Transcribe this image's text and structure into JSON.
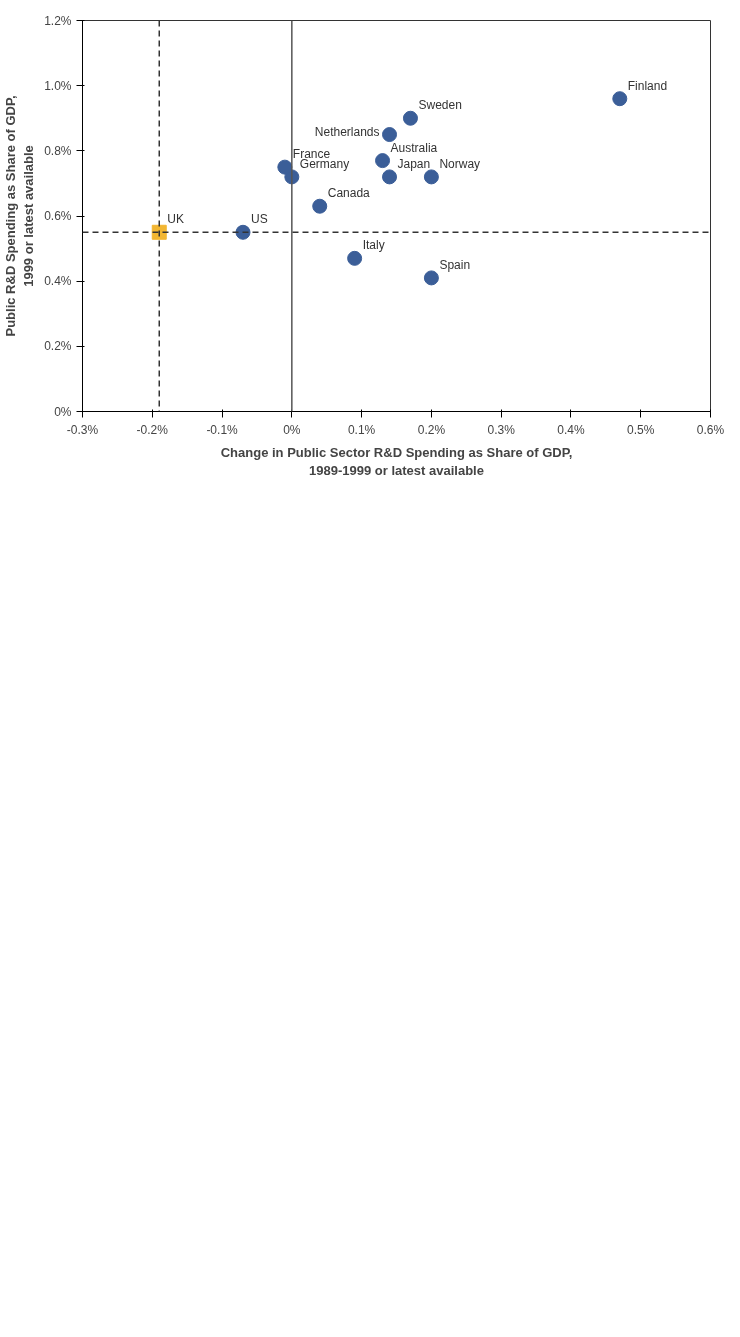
{
  "chart_data": {
    "type": "scatter",
    "xlabel": "Change in Public Sector R&D Spending as Share of GDP,\n1989-1999 or latest available",
    "ylabel": "Public R&D Spending as Share of GDP,\n1999 or latest available",
    "xlim": [
      -0.3,
      0.6
    ],
    "ylim": [
      0,
      1.2
    ],
    "xticks": [
      {
        "value": -0.3,
        "label": "-0.3%"
      },
      {
        "value": -0.2,
        "label": "-0.2%"
      },
      {
        "value": -0.1,
        "label": "-0.1%"
      },
      {
        "value": 0,
        "label": "0%"
      },
      {
        "value": 0.1,
        "label": "0.1%"
      },
      {
        "value": 0.2,
        "label": "0.2%"
      },
      {
        "value": 0.3,
        "label": "0.3%"
      },
      {
        "value": 0.4,
        "label": "0.4%"
      },
      {
        "value": 0.5,
        "label": "0.5%"
      },
      {
        "value": 0.6,
        "label": "0.6%"
      }
    ],
    "yticks": [
      {
        "value": 0,
        "label": "0%"
      },
      {
        "value": 0.2,
        "label": "0.2%"
      },
      {
        "value": 0.4,
        "label": "0.4%"
      },
      {
        "value": 0.6,
        "label": "0.6%"
      },
      {
        "value": 0.8,
        "label": "0.8%"
      },
      {
        "value": 1.0,
        "label": "1.0%"
      },
      {
        "value": 1.2,
        "label": "1.2%"
      }
    ],
    "grid": false,
    "series": [
      {
        "color": "#3b5e98",
        "marker": "circle",
        "x": [
          0.47,
          0.17,
          0.14,
          0.13,
          0.14,
          0.2,
          0.04,
          0,
          -0.01,
          -0.07,
          0.09,
          0.2
        ],
        "values": [
          0.96,
          0.9,
          0.85,
          0.77,
          0.72,
          0.72,
          0.63,
          0.72,
          0.75,
          0.55,
          0.47,
          0.41
        ]
      },
      {
        "color": "#f2b632",
        "marker": "square",
        "x": [
          -0.19
        ],
        "values": [
          0.55
        ]
      }
    ],
    "ref_lines": [
      {
        "axis": "x",
        "value": 0,
        "line_style": "solid",
        "color": "#555555"
      },
      {
        "axis": "x",
        "value": -0.19,
        "line_style": "dashed",
        "color": "#333333"
      },
      {
        "axis": "y",
        "value": 0.55,
        "line_style": "dashed",
        "color": "#333333"
      }
    ],
    "annotations": [
      {
        "text": "Finland",
        "x": 0.47,
        "y": 0.96
      },
      {
        "text": "Sweden",
        "x": 0.17,
        "y": 0.9
      },
      {
        "text": "Netherlands",
        "x": 0.14,
        "y": 0.85
      },
      {
        "text": "Australia",
        "x": 0.13,
        "y": 0.77
      },
      {
        "text": "Japan",
        "x": 0.14,
        "y": 0.72
      },
      {
        "text": "Norway",
        "x": 0.2,
        "y": 0.72
      },
      {
        "text": "Canada",
        "x": 0.04,
        "y": 0.63
      },
      {
        "text": "Germany",
        "x": 0,
        "y": 0.72
      },
      {
        "text": "France",
        "x": -0.01,
        "y": 0.75
      },
      {
        "text": "US",
        "x": -0.07,
        "y": 0.55
      },
      {
        "text": "Italy",
        "x": 0.09,
        "y": 0.47
      },
      {
        "text": "Spain",
        "x": 0.2,
        "y": 0.41
      },
      {
        "text": "UK",
        "x": -0.19,
        "y": 0.55
      }
    ]
  }
}
